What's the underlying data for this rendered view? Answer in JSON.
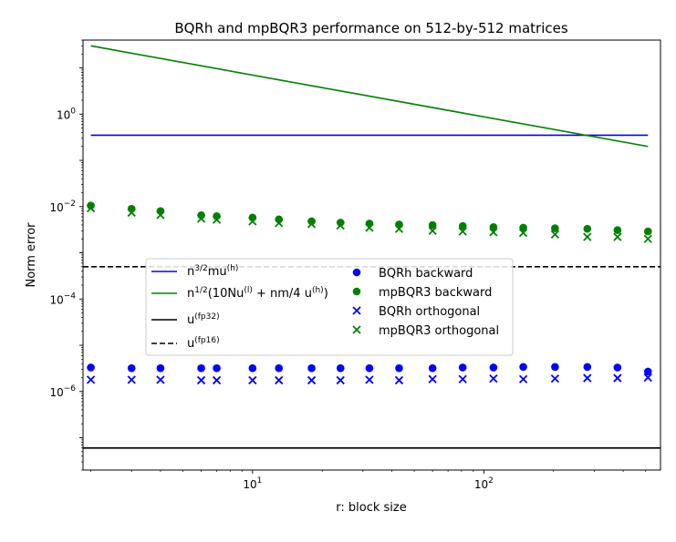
{
  "chart_data": {
    "type": "scatter",
    "title": "BQRh and mpBQR3 performance on 512-by-512 matrices",
    "xlabel": "r: block size",
    "ylabel": "Norm error",
    "xscale": "log",
    "yscale": "log",
    "xlim": [
      1.85,
      580
    ],
    "ylim": [
      2e-08,
      40
    ],
    "x_ticks": [
      {
        "value": 10,
        "base": "10",
        "exp": "1"
      },
      {
        "value": 100,
        "base": "10",
        "exp": "2"
      }
    ],
    "y_ticks": [
      {
        "value": 1e-06,
        "base": "10",
        "exp": "−6"
      },
      {
        "value": 0.0001,
        "base": "10",
        "exp": "−4"
      },
      {
        "value": 0.01,
        "base": "10",
        "exp": "−2"
      },
      {
        "value": 1,
        "base": "10",
        "exp": "0"
      }
    ],
    "x": [
      2,
      3,
      4,
      6,
      7,
      10,
      13,
      18,
      24,
      32,
      43,
      60,
      81,
      110,
      148,
      203,
      280,
      378,
      512
    ],
    "series": [
      {
        "name": "n^{3/2} m u^{(h)}",
        "kind": "line",
        "color": "#0000ff",
        "dash": "solid",
        "x": [
          2,
          512
        ],
        "values": [
          0.35,
          0.35
        ]
      },
      {
        "name": "n^{1/2}(10Nu^{(l)} + (nm/4) u^{(h)})",
        "kind": "line",
        "color": "#008000",
        "dash": "solid",
        "x": [
          2,
          512
        ],
        "values": [
          30,
          0.2
        ]
      },
      {
        "name": "u^{(fp32)}",
        "kind": "line",
        "color": "#000000",
        "dash": "solid",
        "x": [
          1.85,
          580
        ],
        "values": [
          6e-08,
          6e-08
        ]
      },
      {
        "name": "u^{(fp16)}",
        "kind": "line",
        "color": "#000000",
        "dash": "dashed",
        "x": [
          1.85,
          580
        ],
        "values": [
          0.0005,
          0.0005
        ]
      },
      {
        "name": "BQRh backward",
        "kind": "dot",
        "color": "#0000ff",
        "values": [
          3.3e-06,
          3.2e-06,
          3.2e-06,
          3.2e-06,
          3.2e-06,
          3.2e-06,
          3.2e-06,
          3.2e-06,
          3.2e-06,
          3.2e-06,
          3.2e-06,
          3.2e-06,
          3.3e-06,
          3.3e-06,
          3.4e-06,
          3.4e-06,
          3.4e-06,
          3.3e-06,
          2.7e-06
        ]
      },
      {
        "name": "mpBQR3 backward",
        "kind": "dot",
        "color": "#008000",
        "values": [
          0.0105,
          0.009,
          0.008,
          0.0065,
          0.0062,
          0.0058,
          0.0053,
          0.0048,
          0.0045,
          0.0043,
          0.0041,
          0.004,
          0.0038,
          0.0036,
          0.0035,
          0.0034,
          0.0033,
          0.0031,
          0.0029
        ]
      },
      {
        "name": "BQRh orthogonal",
        "kind": "x",
        "color": "#0000ff",
        "values": [
          1.8e-06,
          1.8e-06,
          1.8e-06,
          1.75e-06,
          1.75e-06,
          1.75e-06,
          1.75e-06,
          1.75e-06,
          1.75e-06,
          1.8e-06,
          1.75e-06,
          1.85e-06,
          1.85e-06,
          1.9e-06,
          1.85e-06,
          1.9e-06,
          1.95e-06,
          1.95e-06,
          2e-06
        ]
      },
      {
        "name": "mpBQR3 orthogonal",
        "kind": "x",
        "color": "#008000",
        "values": [
          0.0092,
          0.0074,
          0.0066,
          0.0055,
          0.0052,
          0.0048,
          0.0044,
          0.0042,
          0.0039,
          0.0035,
          0.0033,
          0.003,
          0.0029,
          0.0028,
          0.0027,
          0.0025,
          0.0022,
          0.0022,
          0.002
        ]
      }
    ],
    "legend": {
      "placement": "center-left",
      "entries": [
        {
          "base": "n",
          "sup": "3/2",
          "rest": "mu",
          "sup2": "(h)"
        },
        {
          "text": "n^{1/2}(10Nu^{(l)} + nm/4 u^{(h)})"
        },
        {
          "base": "u",
          "sup": "(fp32)"
        },
        {
          "base": "u",
          "sup": "(fp16)"
        },
        {
          "text": "BQRh backward"
        },
        {
          "text": "mpBQR3 backward"
        },
        {
          "text": "BQRh orthogonal"
        },
        {
          "text": "mpBQR3 orthogonal"
        }
      ]
    }
  }
}
